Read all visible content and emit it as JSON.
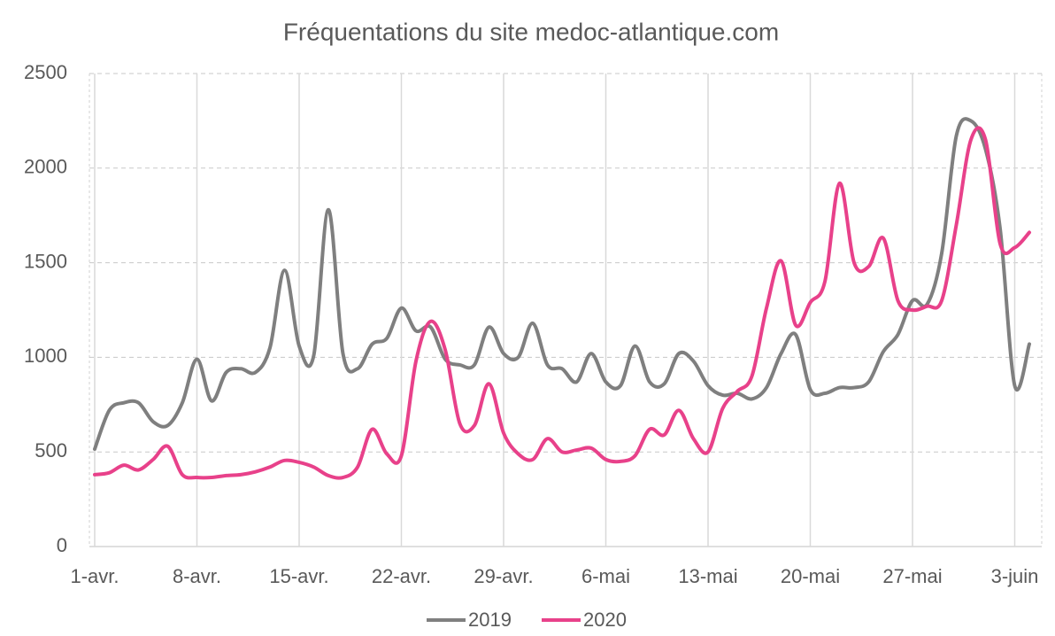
{
  "chart_data": {
    "type": "line",
    "title": "Fréquentations du site medoc-atlantique.com",
    "categories": [
      "1-avr.",
      null,
      null,
      null,
      null,
      null,
      null,
      "8-avr.",
      null,
      null,
      null,
      null,
      null,
      null,
      "15-avr.",
      null,
      null,
      null,
      null,
      null,
      null,
      "22-avr.",
      null,
      null,
      null,
      null,
      null,
      null,
      "29-avr.",
      null,
      null,
      null,
      null,
      null,
      null,
      "6-mai",
      null,
      null,
      null,
      null,
      null,
      null,
      "13-mai",
      null,
      null,
      null,
      null,
      null,
      null,
      "20-mai",
      null,
      null,
      null,
      null,
      null,
      null,
      "27-mai",
      null,
      null,
      null,
      null,
      null,
      null,
      "3-juin",
      null
    ],
    "series": [
      {
        "name": "2019",
        "color": "#7f7f7f",
        "values": [
          515,
          720,
          760,
          760,
          660,
          640,
          760,
          990,
          770,
          920,
          940,
          920,
          1050,
          1460,
          1060,
          1010,
          1780,
          1020,
          940,
          1070,
          1100,
          1260,
          1140,
          1160,
          990,
          960,
          960,
          1160,
          1020,
          1000,
          1180,
          960,
          940,
          870,
          1020,
          870,
          850,
          1060,
          870,
          860,
          1020,
          980,
          850,
          800,
          810,
          780,
          840,
          1020,
          1120,
          830,
          810,
          840,
          840,
          870,
          1030,
          1120,
          1300,
          1280,
          1550,
          2170,
          2250,
          2100,
          1680,
          850,
          1070
        ]
      },
      {
        "name": "2020",
        "color": "#e8418a",
        "values": [
          380,
          390,
          430,
          405,
          460,
          530,
          380,
          365,
          365,
          375,
          380,
          395,
          420,
          455,
          445,
          420,
          375,
          365,
          420,
          620,
          490,
          480,
          980,
          1190,
          1040,
          650,
          640,
          860,
          600,
          490,
          460,
          570,
          500,
          510,
          520,
          460,
          450,
          480,
          620,
          590,
          720,
          570,
          500,
          730,
          820,
          900,
          1260,
          1510,
          1170,
          1290,
          1400,
          1920,
          1500,
          1480,
          1630,
          1300,
          1250,
          1270,
          1300,
          1700,
          2150,
          2150,
          1600,
          1580,
          1660
        ]
      }
    ],
    "ylim": [
      0,
      2500
    ],
    "yticks": [
      0,
      500,
      1000,
      1500,
      2000,
      2500
    ],
    "grid": true,
    "legend": "bottom"
  }
}
